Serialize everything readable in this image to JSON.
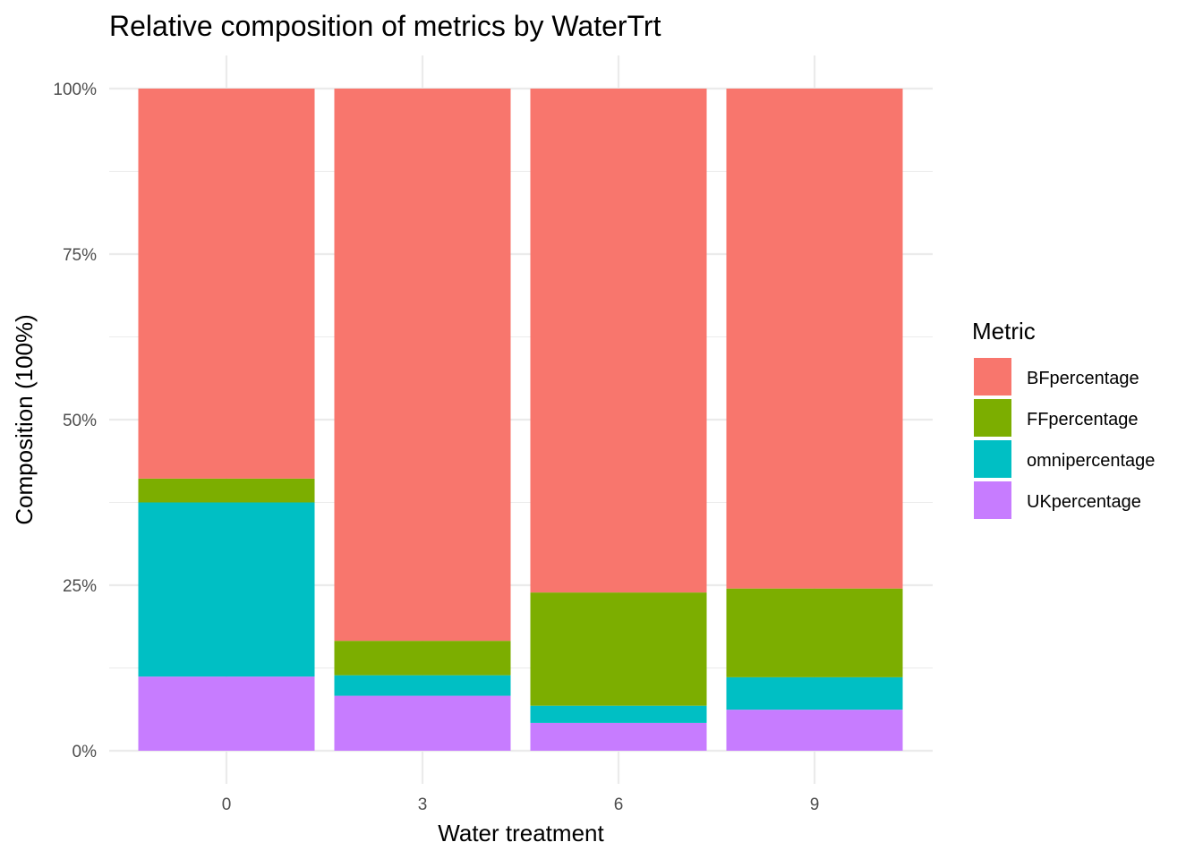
{
  "chart_data": {
    "type": "bar",
    "stacked": true,
    "title": "Relative composition of metrics by WaterTrt",
    "xlabel": "Water treatment",
    "ylabel": "Composition (100%)",
    "categories": [
      "0",
      "3",
      "6",
      "9"
    ],
    "y_ticks": [
      "0%",
      "25%",
      "50%",
      "75%",
      "100%"
    ],
    "ylim": [
      0,
      1
    ],
    "grid": true,
    "legend": {
      "title": "Metric",
      "position": "right"
    },
    "series": [
      {
        "name": "UKpercentage",
        "color": "#C77CFF",
        "values": [
          0.112,
          0.083,
          0.042,
          0.062
        ]
      },
      {
        "name": "omnipercentage",
        "color": "#00BFC4",
        "values": [
          0.263,
          0.031,
          0.026,
          0.049
        ]
      },
      {
        "name": "FFpercentage",
        "color": "#7CAE00",
        "values": [
          0.036,
          0.052,
          0.171,
          0.134
        ]
      },
      {
        "name": "BFpercentage",
        "color": "#F8766D",
        "values": [
          0.589,
          0.834,
          0.761,
          0.755
        ]
      }
    ]
  }
}
